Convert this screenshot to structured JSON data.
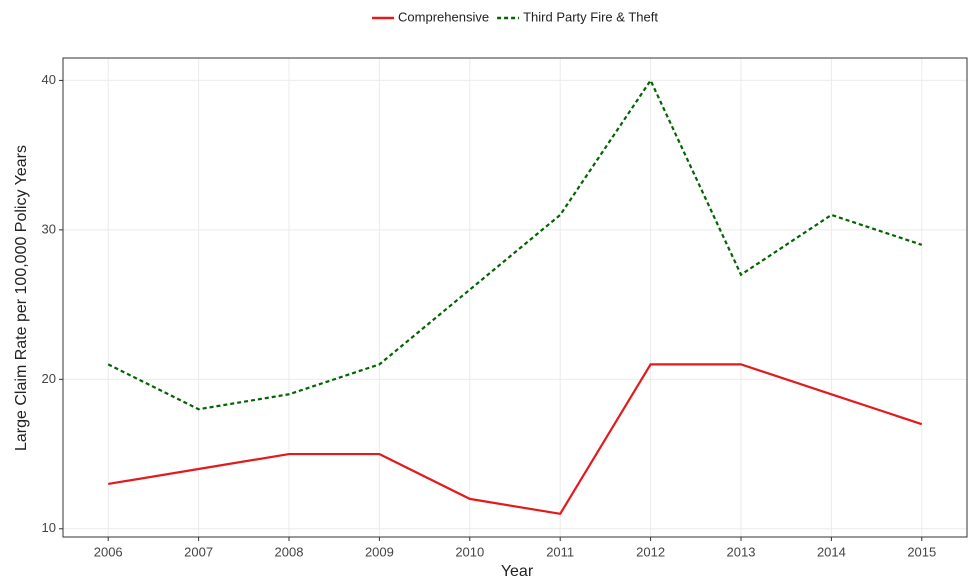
{
  "chart_data": {
    "type": "line",
    "x_label": "Year",
    "y_label": "Large Claim Rate per 100,000 Policy Years",
    "x": [
      2006,
      2007,
      2008,
      2009,
      2010,
      2011,
      2012,
      2013,
      2014,
      2015
    ],
    "series": [
      {
        "name": "Comprehensive",
        "color": "#e31a1c",
        "dash": "solid",
        "values": [
          13,
          14,
          15,
          15,
          12,
          11,
          21,
          21,
          19,
          17
        ]
      },
      {
        "name": "Third Party Fire & Theft",
        "color": "#006400",
        "dash": "dotted",
        "values": [
          21,
          18,
          19,
          21,
          26,
          31,
          40,
          27,
          31,
          29
        ]
      }
    ],
    "xlim": [
      2005.5,
      2015.5
    ],
    "xticks": [
      2006,
      2007,
      2008,
      2009,
      2010,
      2011,
      2012,
      2013,
      2014,
      2015
    ],
    "ylim": [
      9.45,
      41.5
    ],
    "yticks": [
      10,
      20,
      30,
      40
    ],
    "grid": true,
    "legend_position": "top"
  }
}
